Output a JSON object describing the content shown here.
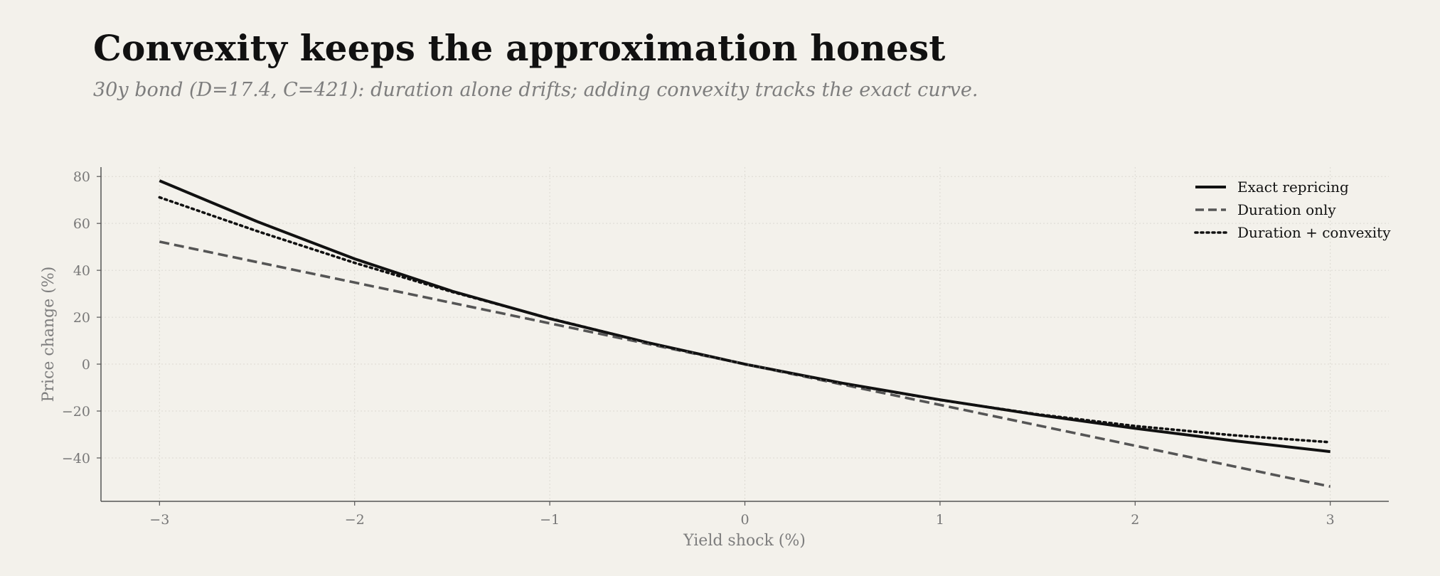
{
  "title": "Convexity keeps the approximation honest",
  "subtitle": "30y bond (D=17.4, C=421): duration alone drifts; adding convexity tracks the exact curve.",
  "chart_data": {
    "type": "line",
    "xlabel": "Yield shock (%)",
    "ylabel": "Price change (%)",
    "xlim": [
      -3.3,
      3.3
    ],
    "ylim": [
      -58.5,
      84
    ],
    "xticks": [
      -3,
      -2,
      -1,
      0,
      1,
      2,
      3
    ],
    "yticks": [
      -40,
      -20,
      0,
      20,
      40,
      60,
      80
    ],
    "grid": true,
    "legend_position": "top-right",
    "x": [
      -3,
      -2.5,
      -2,
      -1.5,
      -1,
      -0.5,
      0,
      0.5,
      1,
      1.5,
      2,
      2.5,
      3
    ],
    "series": [
      {
        "name": "Exact repricing",
        "color": "#111111",
        "style": "solid",
        "values": [
          78.2,
          60.8,
          44.9,
          31.1,
          19.4,
          9.2,
          0,
          -8.1,
          -15.2,
          -21.6,
          -27.4,
          -32.6,
          -37.3
        ]
      },
      {
        "name": "Duration only",
        "color": "#555555",
        "style": "dashed",
        "values": [
          52.2,
          43.5,
          34.8,
          26.1,
          17.4,
          8.7,
          0,
          -8.7,
          -17.4,
          -26.1,
          -34.8,
          -43.5,
          -52.2
        ]
      },
      {
        "name": "Duration + convexity",
        "color": "#111111",
        "style": "dotted",
        "values": [
          71.1,
          56.7,
          43.2,
          30.8,
          19.5,
          9.2,
          0,
          -8.2,
          -15.3,
          -21.4,
          -26.4,
          -30.3,
          -33.3
        ]
      }
    ]
  }
}
